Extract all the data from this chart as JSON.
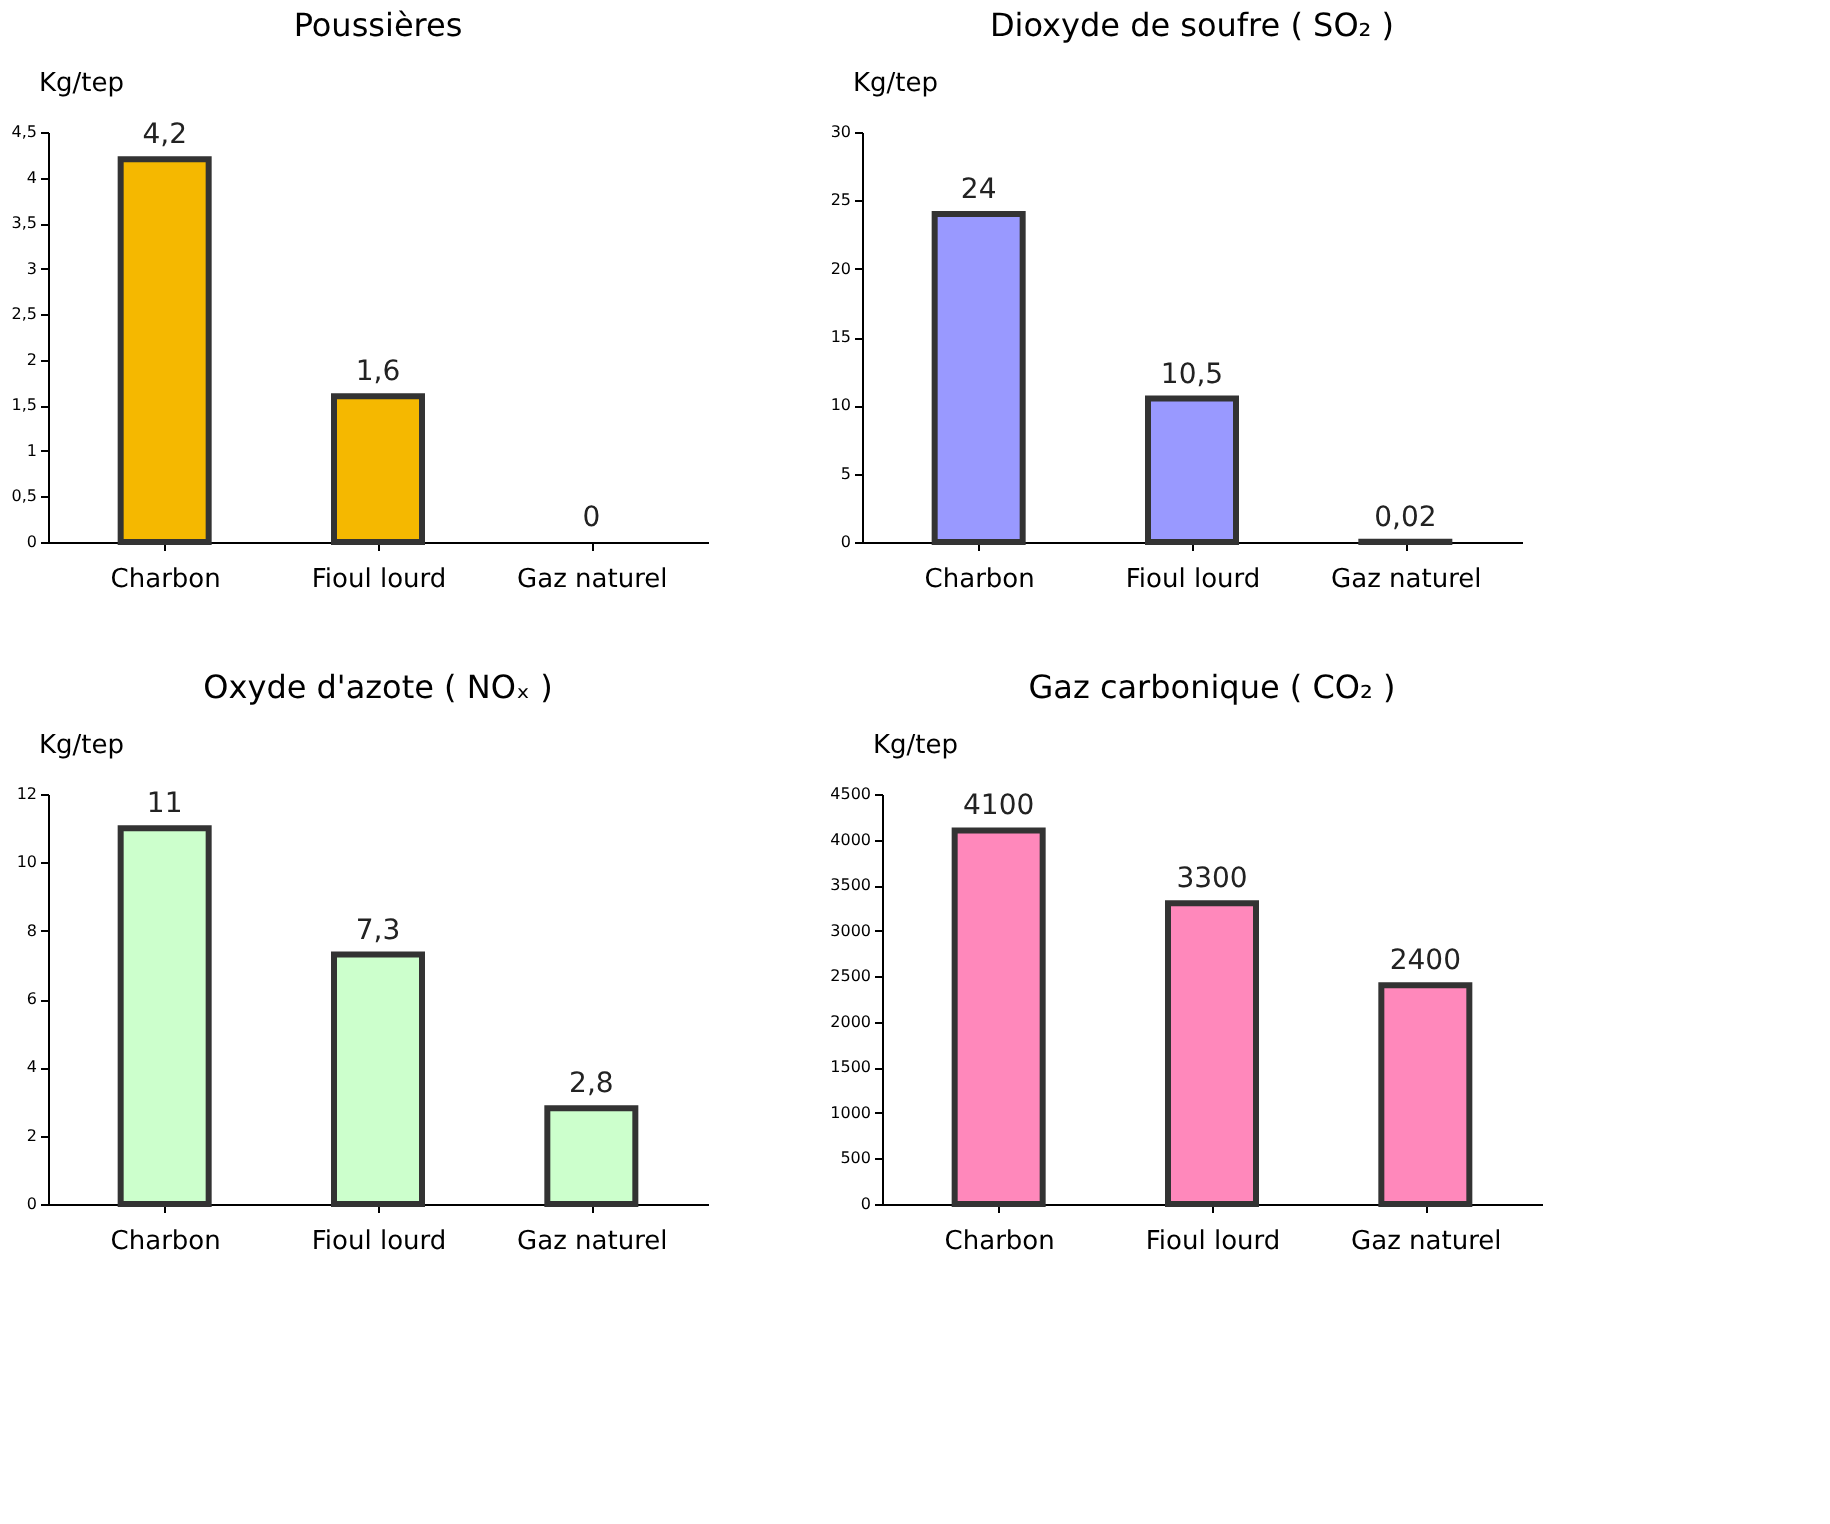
{
  "chart_data": [
    {
      "type": "bar",
      "title": "Poussières",
      "ylabel": "Kg/tep",
      "categories": [
        "Charbon",
        "Fioul lourd",
        "Gaz naturel"
      ],
      "values": [
        4.2,
        1.6,
        0
      ],
      "value_labels": [
        "4,2",
        "1,6",
        "0"
      ],
      "color": "#f5b800",
      "ylim": [
        0,
        4.5
      ],
      "yticks": [
        0,
        {
          "value": 0.5,
          "label": "0,5"
        },
        1,
        {
          "value": 1.5,
          "label": "1,5"
        },
        2,
        {
          "value": 2.5,
          "label": "2,5"
        },
        3,
        {
          "value": 3.5,
          "label": "3,5"
        },
        4,
        {
          "value": 4.5,
          "label": "4,5"
        }
      ],
      "grid": false
    },
    {
      "type": "bar",
      "title": "Dioxyde de soufre ( SO₂ )",
      "ylabel": "Kg/tep",
      "categories": [
        "Charbon",
        "Fioul lourd",
        "Gaz naturel"
      ],
      "values": [
        24,
        10.5,
        0.02
      ],
      "value_labels": [
        "24",
        "10,5",
        "0,02"
      ],
      "color": "#9999ff",
      "ylim": [
        0,
        30
      ],
      "yticks": [
        0,
        5,
        10,
        15,
        20,
        25,
        30
      ],
      "grid": false
    },
    {
      "type": "bar",
      "title": "Oxyde d'azote ( NOₓ )",
      "ylabel": "Kg/tep",
      "categories": [
        "Charbon",
        "Fioul lourd",
        "Gaz naturel"
      ],
      "values": [
        11,
        7.3,
        2.8
      ],
      "value_labels": [
        "11",
        "7,3",
        "2,8"
      ],
      "color": "#ccffcc",
      "ylim": [
        0,
        12
      ],
      "yticks": [
        0,
        2,
        4,
        6,
        8,
        10,
        12
      ],
      "grid": false
    },
    {
      "type": "bar",
      "title": "Gaz carbonique ( CO₂ )",
      "ylabel": "Kg/tep",
      "categories": [
        "Charbon",
        "Fioul lourd",
        "Gaz naturel"
      ],
      "values": [
        4100,
        3300,
        2400
      ],
      "value_labels": [
        "4100",
        "3300",
        "2400"
      ],
      "color": "#ff88bb",
      "ylim": [
        0,
        4500
      ],
      "yticks": [
        0,
        500,
        1000,
        1500,
        2000,
        2500,
        3000,
        3500,
        4000,
        4500
      ],
      "grid": false
    }
  ]
}
